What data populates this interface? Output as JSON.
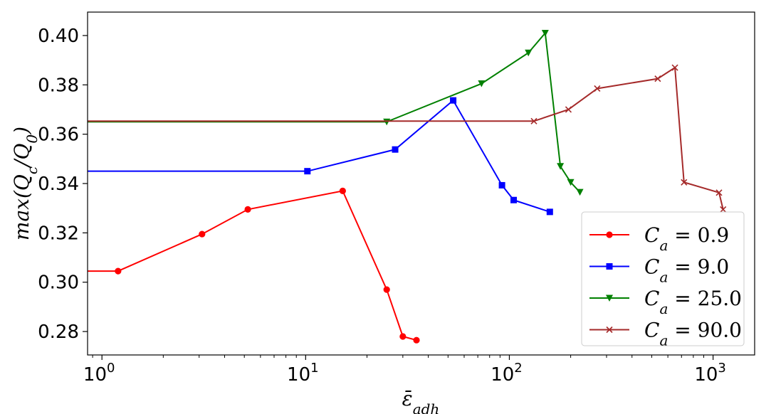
{
  "chart_data": {
    "type": "line",
    "x_scale": "log",
    "xlim": [
      0.85,
      1600
    ],
    "ylim": [
      0.2705,
      0.4095
    ],
    "xlabel": "ε̄",
    "xlabel_sub": "adh",
    "ylabel_parts": {
      "pre": "max(Q",
      "sub1": "c",
      "mid": "/Q",
      "sub2": "0",
      "post": ")"
    },
    "yticks": [
      0.28,
      0.3,
      0.32,
      0.34,
      0.36,
      0.38,
      0.4
    ],
    "ytick_labels": [
      "0.28",
      "0.30",
      "0.32",
      "0.34",
      "0.36",
      "0.38",
      "0.40"
    ],
    "xticks": [
      {
        "value": 1,
        "base": "10",
        "exp": "0"
      },
      {
        "value": 10,
        "base": "10",
        "exp": "1"
      },
      {
        "value": 100,
        "base": "10",
        "exp": "2"
      },
      {
        "value": 1000,
        "base": "10",
        "exp": "3"
      }
    ],
    "grid": false,
    "legend_position": "lower-right",
    "series": [
      {
        "name": "C_a = 0.9",
        "legend_parts": {
          "c": "C",
          "sub": "a",
          "rest": " = 0.9"
        },
        "color": "#ff0000",
        "marker": "circle",
        "x": [
          0.5,
          1.2,
          3.1,
          5.2,
          15.2,
          25.0,
          30.0,
          35.0
        ],
        "y": [
          0.3045,
          0.3045,
          0.3195,
          0.3295,
          0.337,
          0.297,
          0.278,
          0.2765
        ]
      },
      {
        "name": "C_a = 9.0",
        "legend_parts": {
          "c": "C",
          "sub": "a",
          "rest": " = 9.0"
        },
        "color": "#0000ff",
        "marker": "square",
        "x": [
          0.5,
          10.2,
          27.5,
          53.0,
          92.0,
          105.0,
          158.0
        ],
        "y": [
          0.345,
          0.345,
          0.3538,
          0.3737,
          0.3393,
          0.3333,
          0.3285
        ]
      },
      {
        "name": "C_a = 25.0",
        "legend_parts": {
          "c": "C",
          "sub": "a",
          "rest": " = 25.0"
        },
        "color": "#008000",
        "marker": "triangle-down",
        "x": [
          0.5,
          25.0,
          73.0,
          124.0,
          150.0,
          178.0,
          200.0,
          222.0
        ],
        "y": [
          0.365,
          0.365,
          0.3805,
          0.393,
          0.401,
          0.347,
          0.3405,
          0.3365
        ]
      },
      {
        "name": "C_a = 90.0",
        "legend_parts": {
          "c": "C",
          "sub": "a",
          "rest": " = 90.0"
        },
        "color": "#a52a2a",
        "marker": "x",
        "x": [
          0.5,
          132.0,
          195.0,
          270.0,
          535.0,
          650.0,
          720.0,
          1070.0,
          1120.0
        ],
        "y": [
          0.3653,
          0.3653,
          0.37,
          0.3785,
          0.3825,
          0.387,
          0.3405,
          0.3363,
          0.3295
        ]
      }
    ]
  }
}
